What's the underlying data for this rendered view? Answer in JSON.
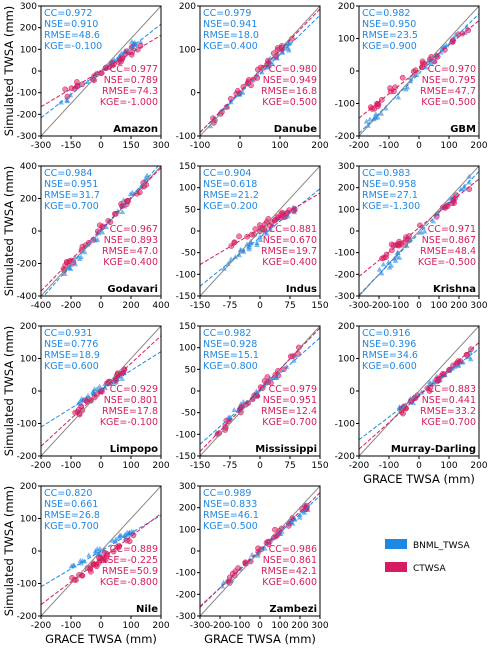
{
  "figure": {
    "ylabel": "Simulated TWSA (mm)",
    "xlabel": "GRACE TWSA (mm)",
    "legend": [
      {
        "label": "BNML_TWSA",
        "color": "#1e88e5"
      },
      {
        "label": "CTWSA",
        "color": "#d81b60"
      }
    ]
  },
  "chart_data": [
    {
      "type": "scatter",
      "name": "Amazon",
      "xlim": [
        -300,
        300
      ],
      "ylim": [
        -300,
        300
      ],
      "xticks": [
        "-300",
        "-150",
        "0",
        "150",
        "300"
      ],
      "yticks": [
        "-300",
        "-200",
        "-100",
        "0",
        "100",
        "200",
        "300"
      ],
      "bnml": {
        "CC": "0.972",
        "NSE": "0.910",
        "RMSE": "48.6",
        "KGE": "-0.100",
        "slope": 0.72,
        "intercept": 0
      },
      "ctwsa": {
        "CC": "0.977",
        "NSE": "0.789",
        "RMSE": "74.3",
        "KGE": "-1.000",
        "slope": 0.55,
        "intercept": 0
      },
      "spread": [
        -200,
        200
      ]
    },
    {
      "type": "scatter",
      "name": "Danube",
      "xlim": [
        -150,
        200
      ],
      "ylim": [
        -150,
        200
      ],
      "xticks": [
        "-100",
        "0",
        "100",
        "200"
      ],
      "yticks": [
        "-100",
        "0",
        "100",
        "200"
      ],
      "bnml": {
        "CC": "0.979",
        "NSE": "0.941",
        "RMSE": "18.0",
        "KGE": "0.400",
        "slope": 0.9,
        "intercept": -5
      },
      "ctwsa": {
        "CC": "0.980",
        "NSE": "0.949",
        "RMSE": "16.8",
        "KGE": "0.500",
        "slope": 0.95,
        "intercept": 2
      },
      "spread": [
        -120,
        120
      ]
    },
    {
      "type": "scatter",
      "name": "GBM",
      "xlim": [
        -200,
        200
      ],
      "ylim": [
        -200,
        200
      ],
      "xticks": [
        "-200",
        "-100",
        "0",
        "100",
        "200"
      ],
      "yticks": [
        "-200",
        "-100",
        "0",
        "100",
        "200"
      ],
      "bnml": {
        "CC": "0.982",
        "NSE": "0.950",
        "RMSE": "23.5",
        "KGE": "0.900",
        "slope": 0.92,
        "intercept": -8
      },
      "ctwsa": {
        "CC": "0.970",
        "NSE": "0.795",
        "RMSE": "47.7",
        "KGE": "0.500",
        "slope": 0.75,
        "intercept": 5
      },
      "spread": [
        -180,
        170
      ]
    },
    {
      "type": "scatter",
      "name": "Godavari",
      "xlim": [
        -400,
        400
      ],
      "ylim": [
        -400,
        400
      ],
      "xticks": [
        "-400",
        "-200",
        "0",
        "200",
        "400"
      ],
      "yticks": [
        "-400",
        "-200",
        "0",
        "200",
        "400"
      ],
      "bnml": {
        "CC": "0.984",
        "NSE": "0.951",
        "RMSE": "31.7",
        "KGE": "0.700",
        "slope": 1.05,
        "intercept": 0
      },
      "ctwsa": {
        "CC": "0.967",
        "NSE": "0.893",
        "RMSE": "47.0",
        "KGE": "0.400",
        "slope": 0.95,
        "intercept": 10
      },
      "spread": [
        -250,
        330
      ]
    },
    {
      "type": "scatter",
      "name": "Indus",
      "xlim": [
        -150,
        150
      ],
      "ylim": [
        -150,
        150
      ],
      "xticks": [
        "-150",
        "-75",
        "0",
        "75",
        "150"
      ],
      "yticks": [
        "-150",
        "-100",
        "-50",
        "0",
        "50",
        "100",
        "150"
      ],
      "bnml": {
        "CC": "0.904",
        "NSE": "0.618",
        "RMSE": "21.2",
        "KGE": "0.200",
        "slope": 0.75,
        "intercept": -15
      },
      "ctwsa": {
        "CC": "0.881",
        "NSE": "0.670",
        "RMSE": "19.7",
        "KGE": "0.400",
        "slope": 0.55,
        "intercept": 5
      },
      "spread": [
        -90,
        90
      ]
    },
    {
      "type": "scatter",
      "name": "Krishna",
      "xlim": [
        -300,
        300
      ],
      "ylim": [
        -300,
        300
      ],
      "xticks": [
        "-300",
        "-200",
        "-100",
        "0",
        "100",
        "200",
        "300"
      ],
      "yticks": [
        "-300",
        "-200",
        "-100",
        "0",
        "100",
        "200",
        "300"
      ],
      "bnml": {
        "CC": "0.983",
        "NSE": "0.958",
        "RMSE": "27.1",
        "KGE": "-1.300",
        "slope": 0.95,
        "intercept": -10
      },
      "ctwsa": {
        "CC": "0.971",
        "NSE": "0.867",
        "RMSE": "48.4",
        "KGE": "-0.500",
        "slope": 0.75,
        "intercept": 15
      },
      "spread": [
        -200,
        260
      ]
    },
    {
      "type": "scatter",
      "name": "Limpopo",
      "xlim": [
        -200,
        200
      ],
      "ylim": [
        -200,
        200
      ],
      "xticks": [
        "-200",
        "-100",
        "0",
        "100",
        "200"
      ],
      "yticks": [
        "-200",
        "-100",
        "0",
        "100",
        "200"
      ],
      "bnml": {
        "CC": "0.931",
        "NSE": "0.776",
        "RMSE": "18.9",
        "KGE": "0.600",
        "slope": 0.58,
        "intercept": 5
      },
      "ctwsa": {
        "CC": "0.929",
        "NSE": "0.801",
        "RMSE": "17.8",
        "KGE": "-0.100",
        "slope": 0.85,
        "intercept": 0
      },
      "spread": [
        -90,
        80
      ]
    },
    {
      "type": "scatter",
      "name": "Mississippi",
      "xlim": [
        -150,
        150
      ],
      "ylim": [
        -150,
        150
      ],
      "xticks": [
        "-150",
        "-75",
        "0",
        "75",
        "150"
      ],
      "yticks": [
        "-150",
        "-100",
        "-50",
        "0",
        "50",
        "100",
        "150"
      ],
      "bnml": {
        "CC": "0.982",
        "NSE": "0.928",
        "RMSE": "15.1",
        "KGE": "0.800",
        "slope": 0.82,
        "intercept": 0
      },
      "ctwsa": {
        "CC": "0.979",
        "NSE": "0.951",
        "RMSE": "12.4",
        "KGE": "0.700",
        "slope": 0.95,
        "intercept": 3
      },
      "spread": [
        -110,
        100
      ]
    },
    {
      "type": "scatter",
      "name": "Murray-Darling",
      "xlim": [
        -200,
        200
      ],
      "ylim": [
        -200,
        200
      ],
      "xticks": [
        "-200",
        "-100",
        "0",
        "100",
        "200"
      ],
      "yticks": [
        "-200",
        "-100",
        "0",
        "100",
        "200"
      ],
      "bnml": {
        "CC": "0.916",
        "NSE": "0.396",
        "RMSE": "34.6",
        "KGE": "0.600",
        "slope": 0.7,
        "intercept": -10
      },
      "ctwsa": {
        "CC": "0.883",
        "NSE": "0.441",
        "RMSE": "33.2",
        "KGE": "0.700",
        "slope": 0.82,
        "intercept": -15
      },
      "spread": [
        -70,
        180
      ]
    },
    {
      "type": "scatter",
      "name": "Nile",
      "xlim": [
        -200,
        200
      ],
      "ylim": [
        -200,
        200
      ],
      "xticks": [
        "-200",
        "-100",
        "0",
        "100",
        "200"
      ],
      "yticks": [
        "-200",
        "-100",
        "0",
        "100",
        "200"
      ],
      "bnml": {
        "CC": "0.820",
        "NSE": "0.661",
        "RMSE": "26.8",
        "KGE": "0.700",
        "slope": 0.55,
        "intercept": 0
      },
      "ctwsa": {
        "CC": "0.889",
        "NSE": "-0.225",
        "RMSE": "50.9",
        "KGE": "-0.800",
        "slope": 0.7,
        "intercept": -25
      },
      "spread": [
        -100,
        110
      ]
    },
    {
      "type": "scatter",
      "name": "Zambezi",
      "xlim": [
        -300,
        300
      ],
      "ylim": [
        -300,
        300
      ],
      "xticks": [
        "-300",
        "-200",
        "-100",
        "0",
        "100",
        "200",
        "300"
      ],
      "yticks": [
        "-300",
        "-200",
        "-100",
        "0",
        "100",
        "200",
        "300"
      ],
      "bnml": {
        "CC": "0.989",
        "NSE": "0.833",
        "RMSE": "46.1",
        "KGE": "0.500",
        "slope": 0.85,
        "intercept": 0
      },
      "ctwsa": {
        "CC": "0.986",
        "NSE": "0.861",
        "RMSE": "42.1",
        "KGE": "0.600",
        "slope": 0.88,
        "intercept": 5
      },
      "spread": [
        -200,
        250
      ]
    }
  ]
}
